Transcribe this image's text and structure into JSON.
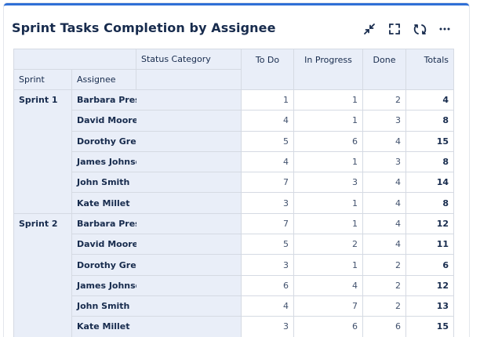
{
  "widget": {
    "title": "Sprint Tasks Completion by Assignee",
    "toolbar": {
      "icons": [
        "collapse-icon",
        "fullscreen-icon",
        "refresh-icon",
        "more-icon"
      ],
      "accent_color": "#2f6fd6"
    }
  },
  "table": {
    "header": {
      "status_category": "Status Category",
      "sprint": "Sprint",
      "assignee": "Assignee",
      "columns": [
        "To Do",
        "In Progress",
        "Done",
        "Totals"
      ]
    },
    "groups": [
      {
        "sprint": "Sprint 1",
        "rows": [
          {
            "assignee": "Barbara Presley",
            "todo": "1",
            "in_progress": "1",
            "done": "2",
            "total": "4"
          },
          {
            "assignee": "David Moore",
            "todo": "4",
            "in_progress": "1",
            "done": "3",
            "total": "8"
          },
          {
            "assignee": "Dorothy Grey",
            "todo": "5",
            "in_progress": "6",
            "done": "4",
            "total": "15"
          },
          {
            "assignee": "James Johnson",
            "todo": "4",
            "in_progress": "1",
            "done": "3",
            "total": "8"
          },
          {
            "assignee": "John Smith",
            "todo": "7",
            "in_progress": "3",
            "done": "4",
            "total": "14"
          },
          {
            "assignee": "Kate Millet",
            "todo": "3",
            "in_progress": "1",
            "done": "4",
            "total": "8"
          }
        ]
      },
      {
        "sprint": "Sprint 2",
        "rows": [
          {
            "assignee": "Barbara Presley",
            "todo": "7",
            "in_progress": "1",
            "done": "4",
            "total": "12"
          },
          {
            "assignee": "David Moore",
            "todo": "5",
            "in_progress": "2",
            "done": "4",
            "total": "11"
          },
          {
            "assignee": "Dorothy Grey",
            "todo": "3",
            "in_progress": "1",
            "done": "2",
            "total": "6"
          },
          {
            "assignee": "James Johnson",
            "todo": "6",
            "in_progress": "4",
            "done": "2",
            "total": "12"
          },
          {
            "assignee": "John Smith",
            "todo": "4",
            "in_progress": "7",
            "done": "2",
            "total": "13"
          },
          {
            "assignee": "Kate Millet",
            "todo": "3",
            "in_progress": "6",
            "done": "6",
            "total": "15"
          }
        ]
      }
    ]
  }
}
